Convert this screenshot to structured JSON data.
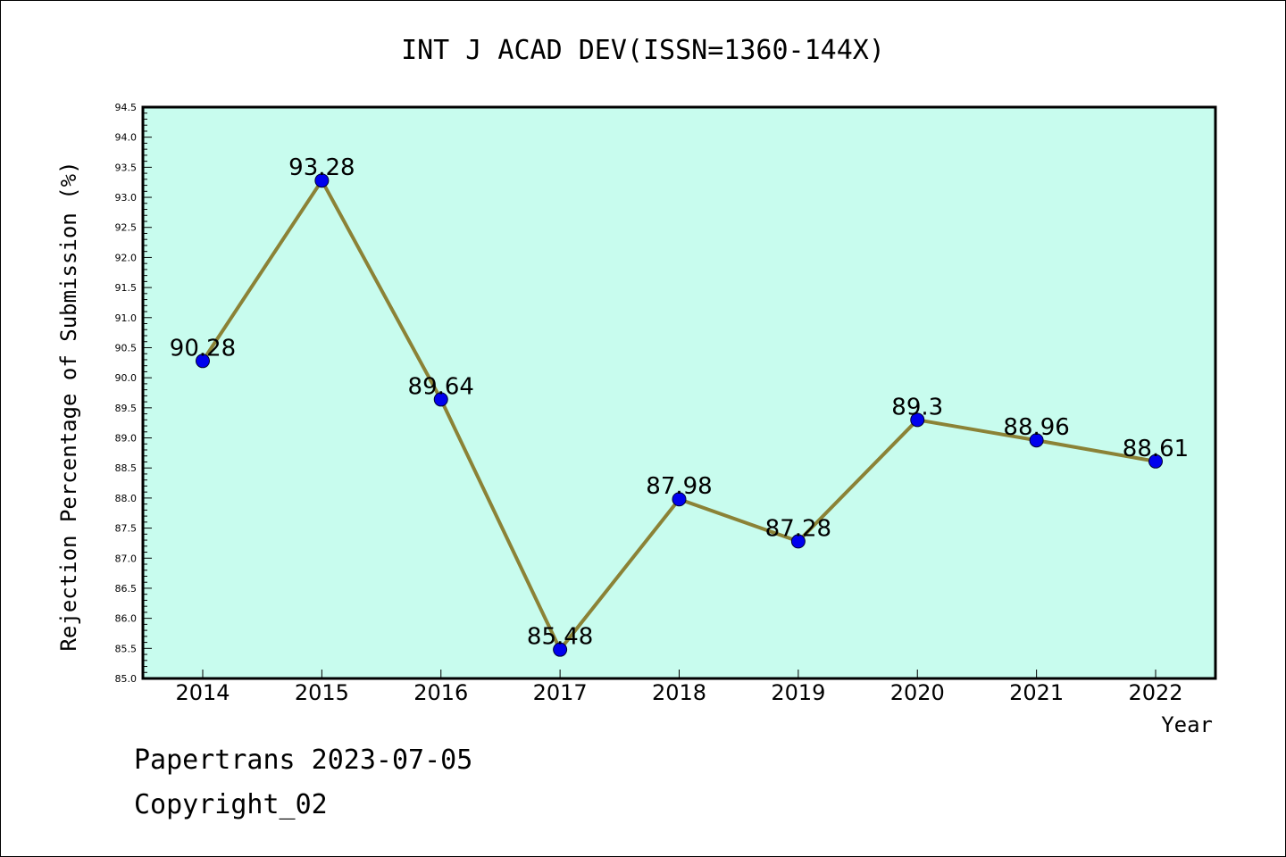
{
  "chart_data": {
    "type": "line",
    "title": "INT J ACAD DEV(ISSN=1360-144X)",
    "xlabel": "Year",
    "ylabel": "Rejection Percentage of Submission (%)",
    "categories": [
      "2014",
      "2015",
      "2016",
      "2017",
      "2018",
      "2019",
      "2020",
      "2021",
      "2022"
    ],
    "series": [
      {
        "values": [
          90.28,
          93.28,
          89.64,
          85.48,
          87.98,
          87.28,
          89.3,
          88.96,
          88.61
        ],
        "labels": [
          "90.28",
          "93.28",
          "89.64",
          "85.48",
          "87.98",
          "87.28",
          "89.3",
          "88.96",
          "88.61"
        ]
      }
    ],
    "ylim": [
      85.0,
      94.5
    ],
    "yticks": [
      "85.0",
      "85.5",
      "86.0",
      "86.5",
      "87.0",
      "87.5",
      "88.0",
      "88.5",
      "89.0",
      "89.5",
      "90.0",
      "90.5",
      "91.0",
      "91.5",
      "92.0",
      "92.5",
      "93.0",
      "93.5",
      "94.0",
      "94.5"
    ],
    "grid": false,
    "colors": {
      "plot_background": "#c8fcee",
      "line": "#8b8236",
      "marker": "#0000ee",
      "axis": "#000000"
    }
  },
  "footer": {
    "line1": "Papertrans 2023-07-05",
    "line2": "Copyright_02"
  }
}
